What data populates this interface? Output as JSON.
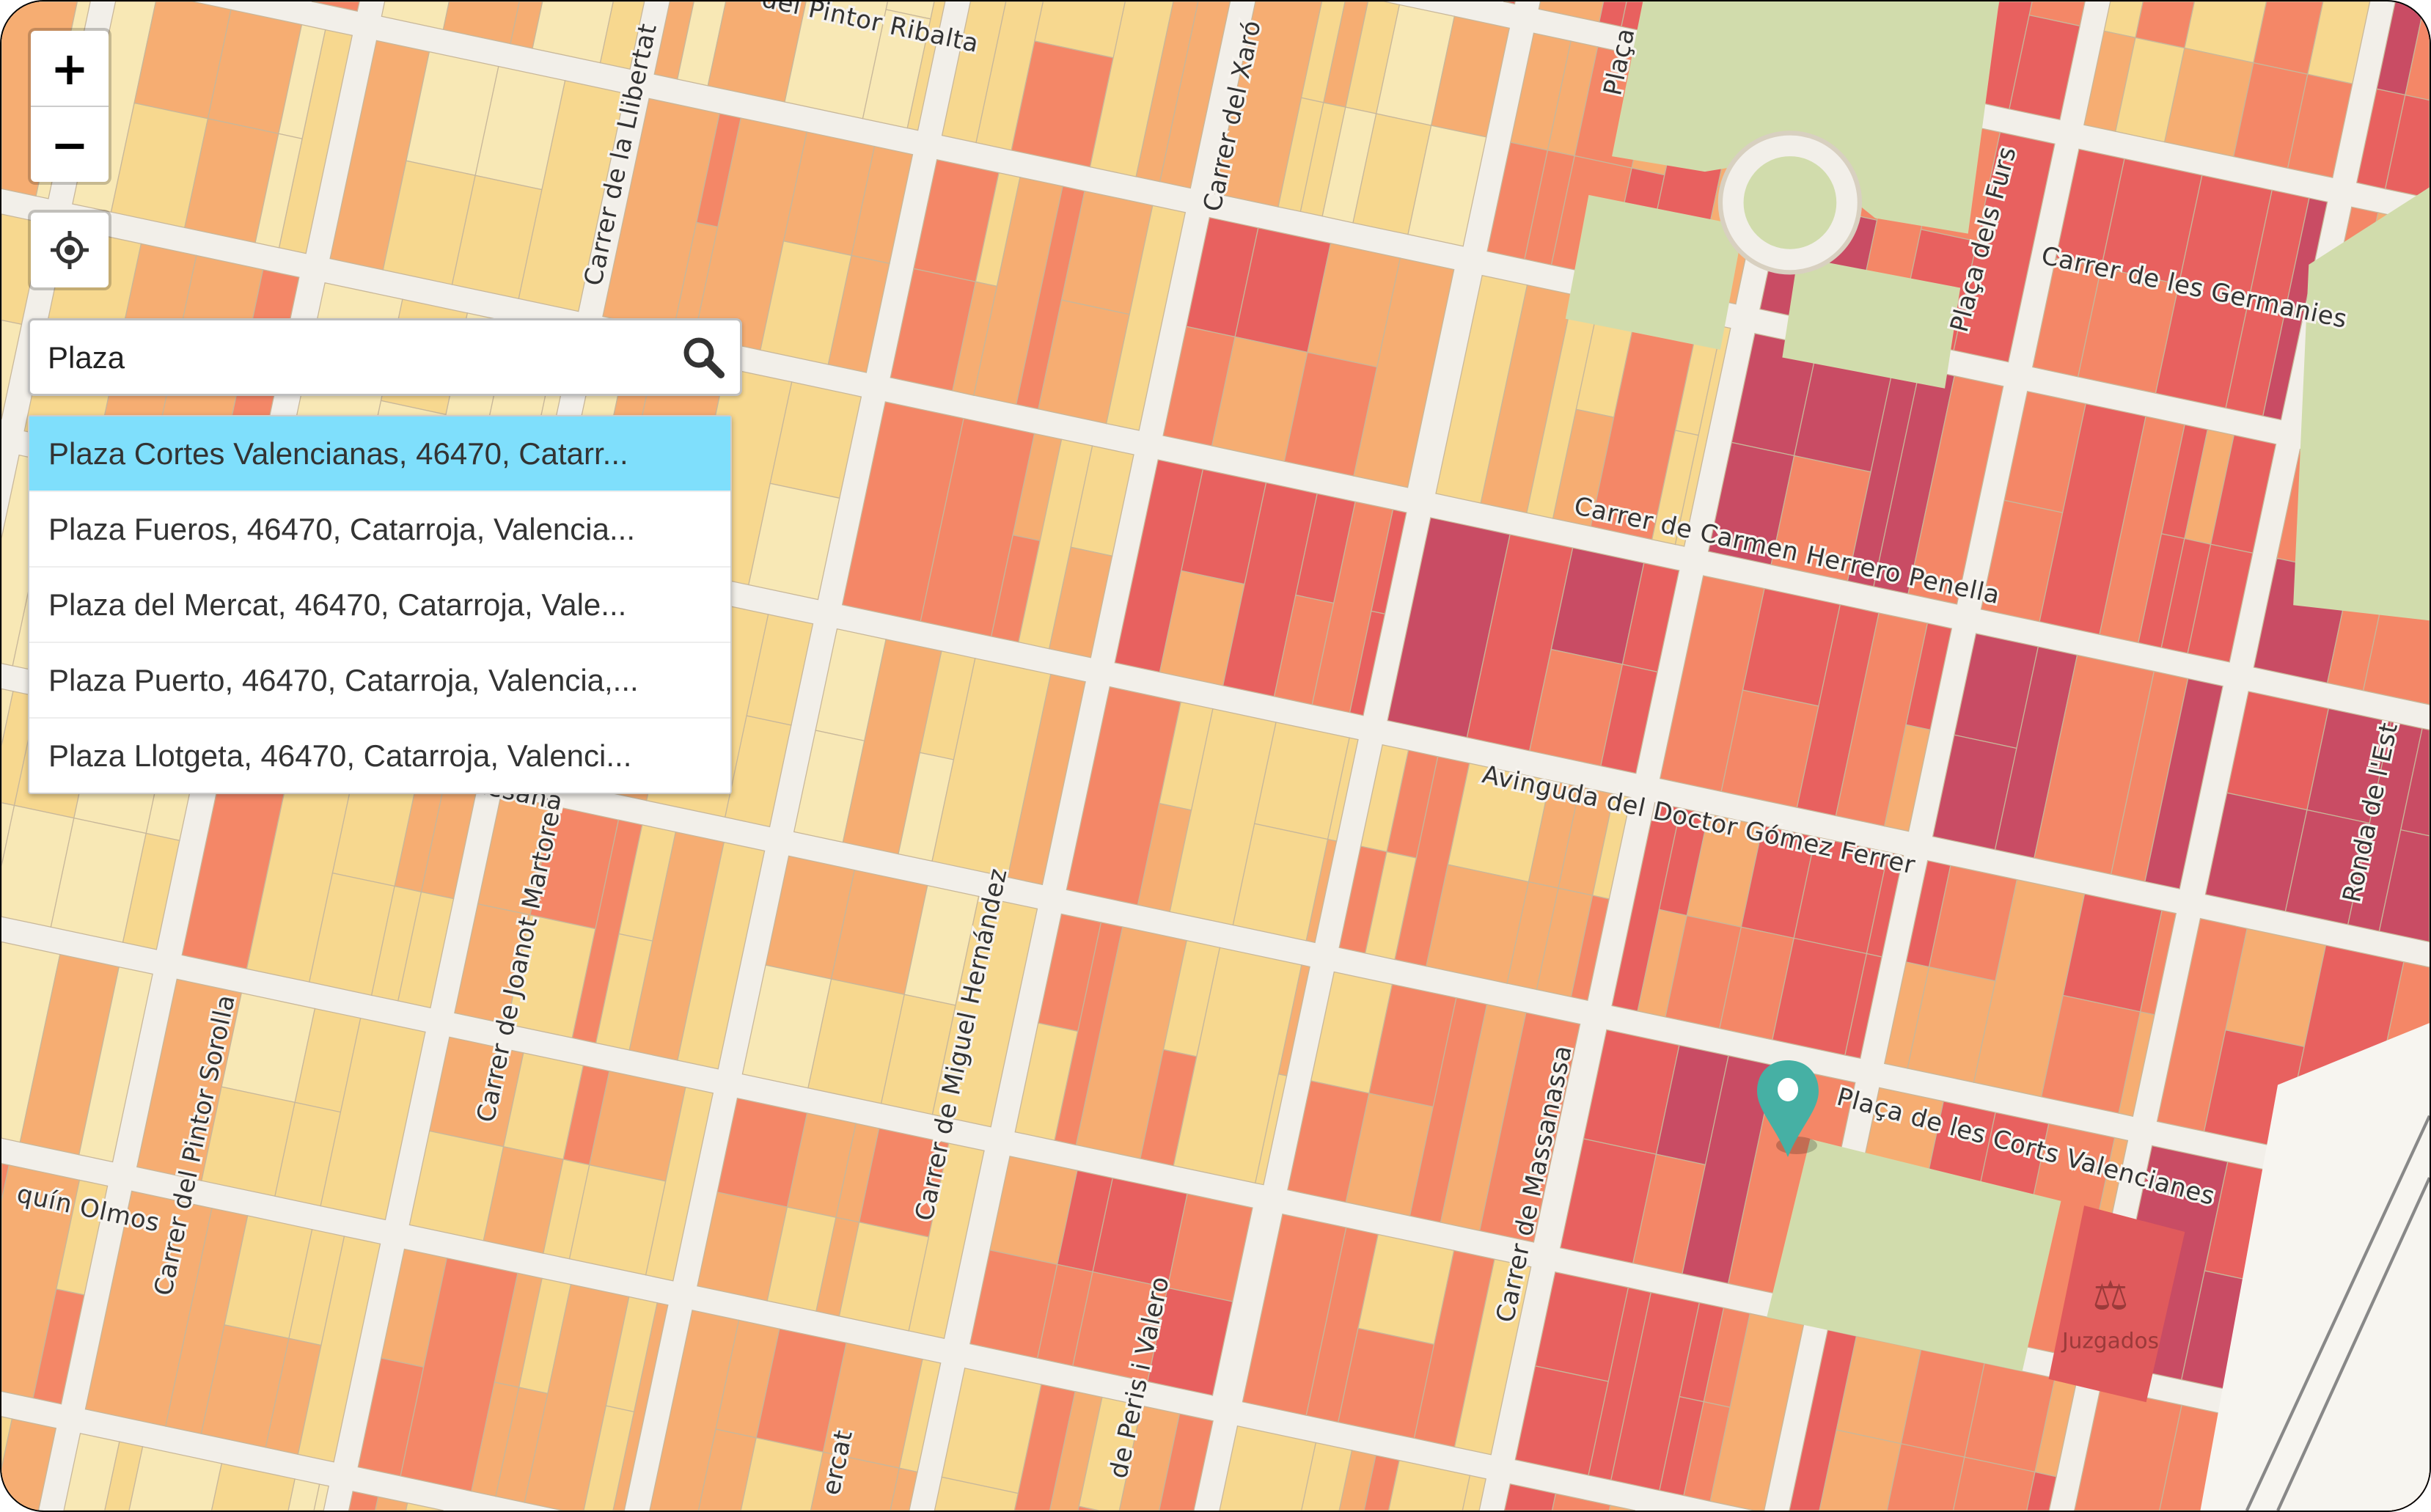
{
  "map": {
    "colors": {
      "road": "#f2efe9",
      "road_edge": "#d8d0c0",
      "park": "#d1dcac",
      "buildings": [
        "#f8e8b5",
        "#f7d88f",
        "#f6ad72",
        "#f48767",
        "#e8615f",
        "#c94c64"
      ],
      "marker": "#46b0a4"
    },
    "street_labels": [
      {
        "text": "del Pintor Ribalta"
      },
      {
        "text": "Carrer del Xaró"
      },
      {
        "text": "Plaça"
      },
      {
        "text": "Carrer de la Llibertat"
      },
      {
        "text": "Plaça dels Furs"
      },
      {
        "text": "Carrer de les Germanies"
      },
      {
        "text": "Carrer de Carmen Herrero Penella"
      },
      {
        "text": "Avinguda del Doctor Gómez Ferrer"
      },
      {
        "text": "Ronda de l'Est"
      },
      {
        "text": "Carrer de Joanot Martorell"
      },
      {
        "text": "Carrer de Miguel Hernández"
      },
      {
        "text": "Carrer del Pintor Sorolla"
      },
      {
        "text": "Carrer de Massanassa"
      },
      {
        "text": "Plaça de les Corts Valencianes"
      },
      {
        "text": "quín Olmos"
      },
      {
        "text": "Artesana"
      },
      {
        "text": "de Peris i Valero"
      },
      {
        "text": "ercat"
      }
    ],
    "poi": {
      "label": "Juzgados",
      "icon": "scales-icon"
    },
    "marker_icon": "map-pin-icon"
  },
  "controls": {
    "zoom_in": "+",
    "zoom_out": "−",
    "locate_icon": "crosshair-icon"
  },
  "search": {
    "value": "Plaza",
    "icon": "search-icon",
    "results": [
      "Plaza Cortes Valencianas, 46470, Catarr...",
      "Plaza Fueros, 46470, Catarroja, Valencia...",
      "Plaza del Mercat, 46470, Catarroja, Vale...",
      "Plaza Puerto, 46470, Catarroja, Valencia,...",
      "Plaza Llotgeta, 46470, Catarroja, Valenci..."
    ]
  }
}
